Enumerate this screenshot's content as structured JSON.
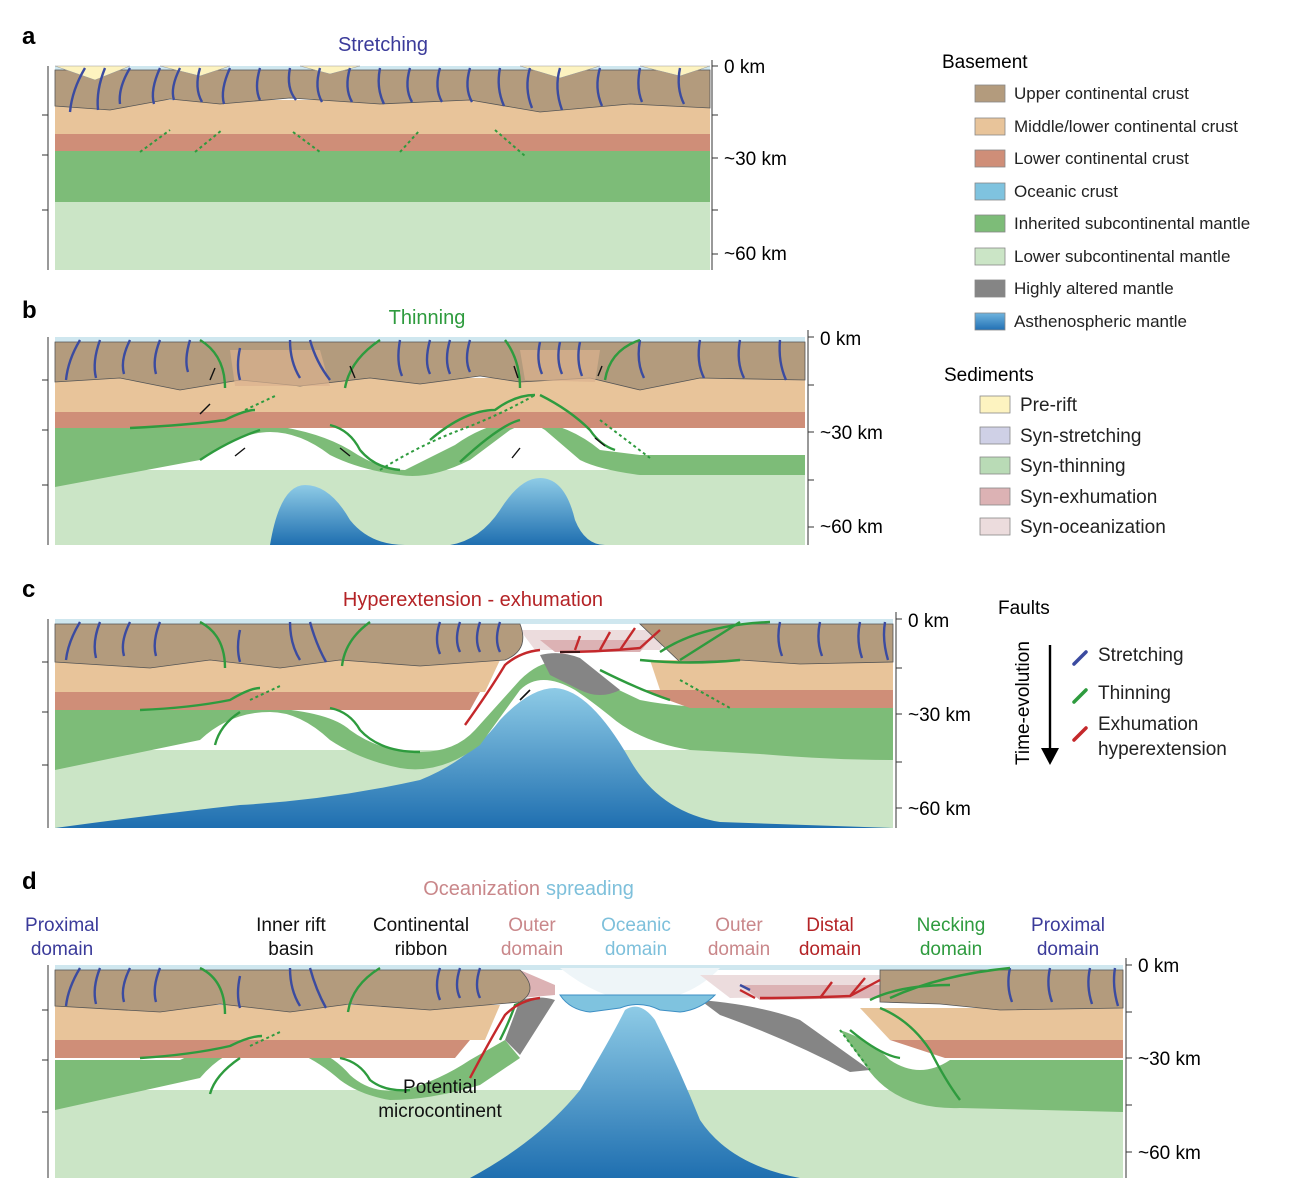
{
  "panels": [
    {
      "letter": "a",
      "title": "Stretching",
      "title_color": "#3b3b9a"
    },
    {
      "letter": "b",
      "title": "Thinning",
      "title_color": "#2e9b3e"
    },
    {
      "letter": "c",
      "title": "Hyperextension - exhumation",
      "title_color": "#b42326"
    },
    {
      "letter": "d",
      "title_part1": "Oceanization",
      "title_part1_color": "#c9878a",
      "title_part2": "spreading",
      "title_part2_color": "#7ec0db"
    }
  ],
  "depths": {
    "top": "0 km",
    "mid": "~30 km",
    "deep": "~60 km"
  },
  "legend": {
    "basement_heading": "Basement",
    "basement": [
      {
        "label": "Upper continental crust",
        "color": "#b39b7d"
      },
      {
        "label": "Middle/lower continental crust",
        "color": "#e8c49a"
      },
      {
        "label": "Lower continental crust",
        "color": "#cf8e78"
      },
      {
        "label": "Oceanic crust",
        "color": "#7fc3df"
      },
      {
        "label": "Inherited subcontinental mantle",
        "color": "#7dbc78"
      },
      {
        "label": "Lower subcontinental mantle",
        "color": "#cbe5c6"
      },
      {
        "label": "Highly altered mantle",
        "color": "#858585"
      },
      {
        "label": "Asthenospheric mantle",
        "color": "#3d8fc4"
      }
    ],
    "sediments_heading": "Sediments",
    "sediments": [
      {
        "label": "Pre-rift",
        "color": "#fdf3c0"
      },
      {
        "label": "Syn-stretching",
        "color": "#cfd0e6"
      },
      {
        "label": "Syn-thinning",
        "color": "#b9dbb6"
      },
      {
        "label": "Syn-exhumation",
        "color": "#dcb2b4"
      },
      {
        "label": "Syn-oceanization",
        "color": "#ecdcdd"
      }
    ],
    "faults_heading": "Faults",
    "time_evolution": "Time-evolution",
    "faults": [
      {
        "label": "Stretching",
        "color": "#3b4ba0"
      },
      {
        "label": "Thinning",
        "color": "#2e9b3e"
      },
      {
        "label": "Exhumation",
        "label2": "hyperextension",
        "color": "#c4282b"
      }
    ]
  },
  "domains": [
    {
      "line1": "Proximal",
      "line2": "domain",
      "color": "#3b3b9a"
    },
    {
      "line1": "Inner rift",
      "line2": "basin",
      "color": "#111111"
    },
    {
      "line1": "Continental",
      "line2": "ribbon",
      "color": "#111111"
    },
    {
      "line1": "Outer",
      "line2": "domain",
      "color": "#c9878a"
    },
    {
      "line1": "Oceanic",
      "line2": "domain",
      "color": "#7ec0db"
    },
    {
      "line1": "Outer",
      "line2": "domain",
      "color": "#c9878a"
    },
    {
      "line1": "Distal",
      "line2": "domain",
      "color": "#b42326"
    },
    {
      "line1": "Necking",
      "line2": "domain",
      "color": "#2e9b3e"
    },
    {
      "line1": "Proximal",
      "line2": "domain",
      "color": "#3b3b9a"
    }
  ],
  "microcontinent": {
    "line1": "Potential",
    "line2": "microcontinent"
  }
}
